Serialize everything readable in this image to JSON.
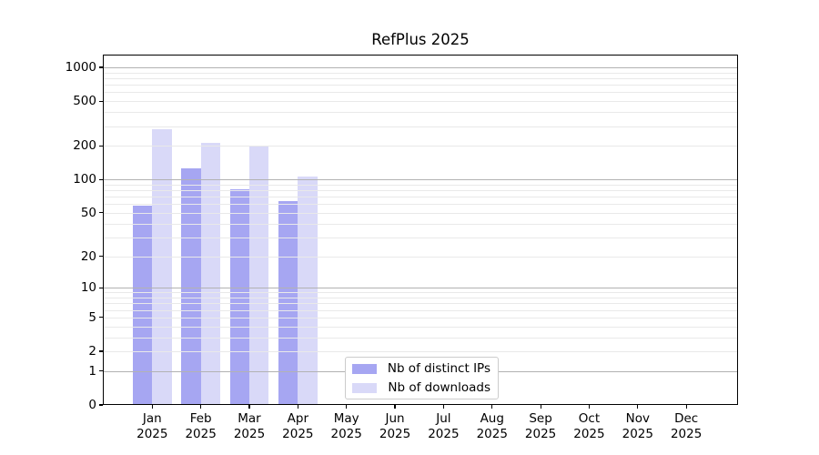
{
  "title": "RefPlus 2025",
  "chart_data": {
    "type": "bar",
    "title": "RefPlus 2025",
    "categories": [
      "Jan",
      "Feb",
      "Mar",
      "Apr",
      "May",
      "Jun",
      "Jul",
      "Aug",
      "Sep",
      "Oct",
      "Nov",
      "Dec"
    ],
    "category_year": "2025",
    "series": [
      {
        "name": "Nb of distinct IPs",
        "color": "#a6a6f2",
        "values": [
          58,
          125,
          82,
          64,
          null,
          null,
          null,
          null,
          null,
          null,
          null,
          null
        ]
      },
      {
        "name": "Nb of downloads",
        "color": "#d9d9f8",
        "values": [
          280,
          212,
          200,
          107,
          null,
          null,
          null,
          null,
          null,
          null,
          null,
          null
        ]
      }
    ],
    "xlabel": "",
    "ylabel": "",
    "yscale": "log1p",
    "ylim": [
      0,
      1300
    ],
    "yticks": [
      0,
      1,
      2,
      5,
      10,
      20,
      50,
      100,
      200,
      500,
      1000
    ],
    "major_gridline_values": [
      1,
      10,
      100,
      1000
    ],
    "grid": true,
    "legend_position": "lower center"
  },
  "colors": {
    "background": "#ffffff",
    "bar_distinct_ips": "#a6a6f2",
    "bar_downloads": "#d9d9f8",
    "gridline_major": "#b2b2b2",
    "gridline_minor": "#e9e9e9",
    "axis_spine": "#000000",
    "legend_border": "#cccccc",
    "text": "#000000"
  }
}
